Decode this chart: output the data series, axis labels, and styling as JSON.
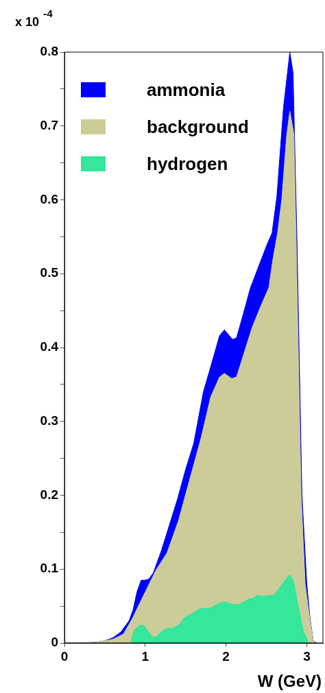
{
  "chart_data": {
    "type": "area",
    "xlabel": "W (GeV)",
    "ylabel": "x 10$^{-4}$",
    "xlim": [
      0,
      3.2
    ],
    "xticks": [
      0,
      1,
      2,
      3
    ],
    "ylim": [
      0,
      0.8
    ],
    "yticks": [
      0,
      {
        "value": 0.05,
        "label": null
      },
      0.1,
      {
        "value": 0.15,
        "label": null
      },
      0.2,
      {
        "value": 0.25,
        "label": null
      },
      0.3,
      {
        "value": 0.35,
        "label": null
      },
      0.4,
      {
        "value": 0.45,
        "label": null
      },
      0.5,
      {
        "value": 0.55,
        "label": null
      },
      0.6,
      {
        "value": 0.65,
        "label": null
      },
      0.7,
      {
        "value": 0.75,
        "label": null
      },
      0.8
    ],
    "grid": false,
    "legend": "top left",
    "series": [
      {
        "name": "ammonia",
        "color": "#0000ff",
        "x": [
          0,
          0.2,
          0.4,
          0.5,
          0.6,
          0.7,
          0.8,
          0.85,
          0.9,
          0.95,
          1.0,
          1.05,
          1.1,
          1.2,
          1.3,
          1.4,
          1.5,
          1.6,
          1.72,
          1.8,
          1.92,
          1.98,
          2.08,
          2.13,
          2.2,
          2.3,
          2.39,
          2.51,
          2.57,
          2.63,
          2.71,
          2.79,
          2.83,
          2.88,
          2.94,
          3.0,
          3.04,
          3.08,
          3.12
        ],
        "values": [
          0,
          0,
          0.001,
          0.003,
          0.007,
          0.015,
          0.03,
          0.045,
          0.07,
          0.085,
          0.085,
          0.087,
          0.095,
          0.125,
          0.16,
          0.195,
          0.235,
          0.27,
          0.34,
          0.37,
          0.416,
          0.424,
          0.411,
          0.413,
          0.44,
          0.48,
          0.506,
          0.54,
          0.555,
          0.605,
          0.723,
          0.8,
          0.772,
          0.537,
          0.2,
          0.08,
          0.033,
          0.003,
          0
        ]
      },
      {
        "name": "background",
        "color": "#cccc99",
        "x": [
          0,
          0.4,
          0.6,
          0.73,
          0.84,
          0.96,
          1.13,
          1.27,
          1.41,
          1.58,
          1.69,
          1.81,
          1.92,
          1.98,
          2.07,
          2.13,
          2.32,
          2.43,
          2.53,
          2.58,
          2.64,
          2.69,
          2.75,
          2.79,
          2.84,
          2.87,
          2.93,
          2.98,
          3.04,
          3.08,
          3.11
        ],
        "values": [
          0,
          0.001,
          0.005,
          0.012,
          0.033,
          0.06,
          0.098,
          0.122,
          0.165,
          0.233,
          0.277,
          0.333,
          0.36,
          0.365,
          0.358,
          0.36,
          0.426,
          0.456,
          0.481,
          0.519,
          0.556,
          0.6,
          0.686,
          0.72,
          0.689,
          0.537,
          0.2,
          0.08,
          0.03,
          0.003,
          0
        ]
      },
      {
        "name": "hydrogen",
        "color": "#35e69b",
        "x": [
          0.82,
          0.86,
          0.93,
          0.98,
          1.09,
          1.13,
          1.24,
          1.3,
          1.34,
          1.43,
          1.48,
          1.58,
          1.69,
          1.77,
          1.82,
          1.9,
          1.98,
          2.09,
          2.15,
          2.23,
          2.29,
          2.33,
          2.39,
          2.43,
          2.6,
          2.71,
          2.79,
          2.84,
          2.9,
          2.96,
          3.02,
          3.05
        ],
        "values": [
          0,
          0.017,
          0.024,
          0.024,
          0.008,
          0.008,
          0.019,
          0.02,
          0.019,
          0.026,
          0.034,
          0.04,
          0.047,
          0.047,
          0.048,
          0.053,
          0.056,
          0.052,
          0.052,
          0.056,
          0.06,
          0.06,
          0.065,
          0.063,
          0.065,
          0.082,
          0.093,
          0.082,
          0.047,
          0.015,
          0.001,
          0
        ]
      }
    ]
  }
}
